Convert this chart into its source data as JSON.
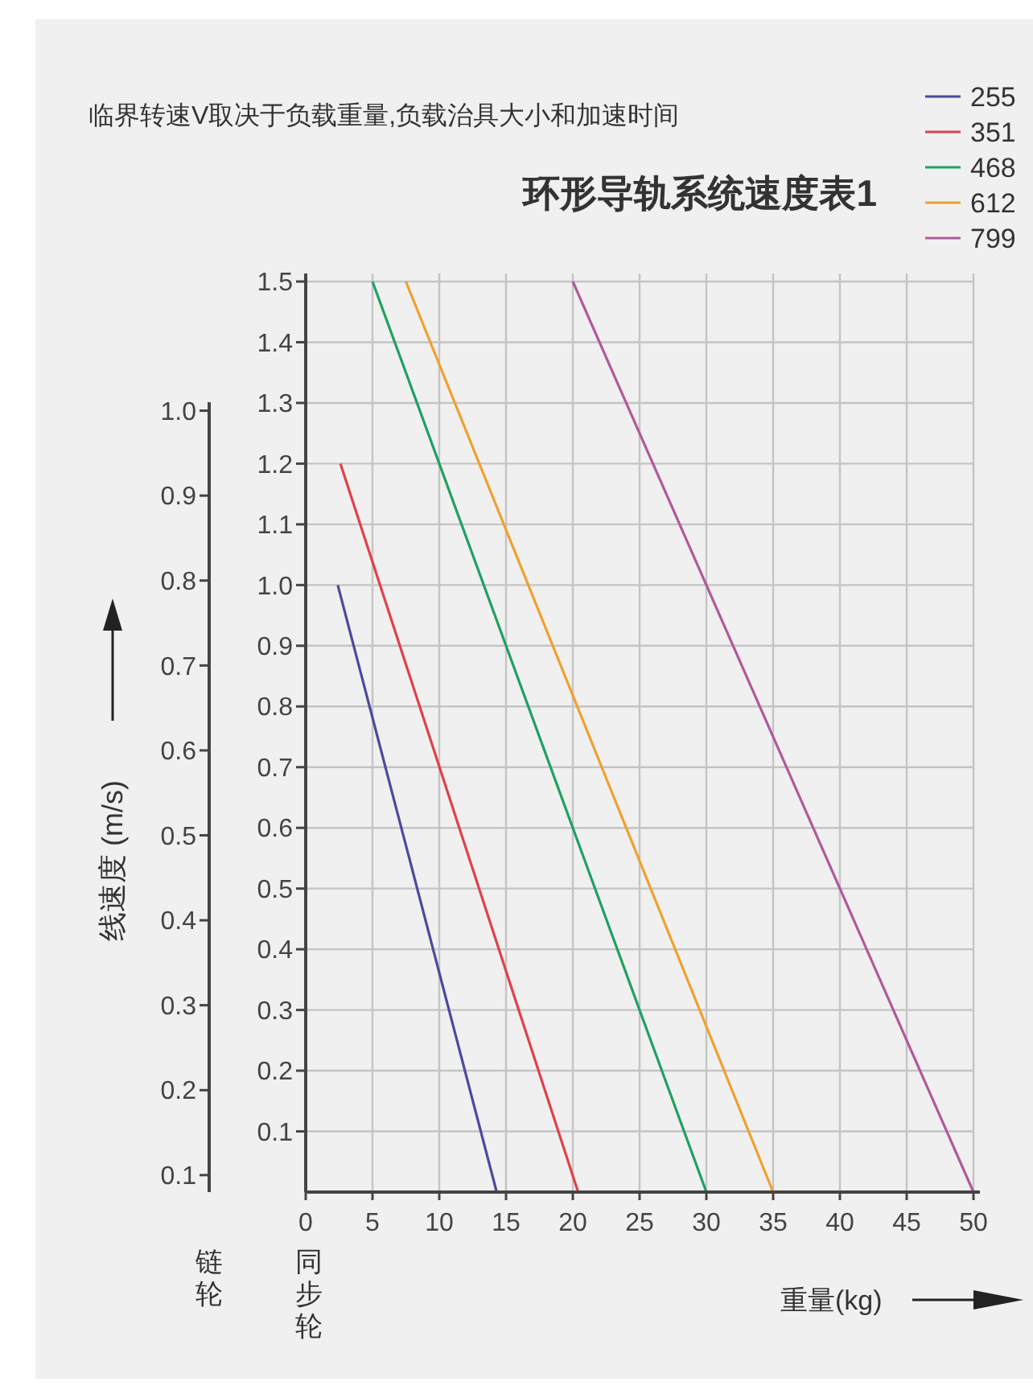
{
  "chart_data": {
    "type": "line",
    "title": "环形导轨系统速度表1",
    "subtitle": "临界转速V取决于负载重量,负载治具大小和加速时间",
    "xlabel": "重量(kg)",
    "ylabel": "线速度 (m/s)",
    "annotations": [
      "链轮",
      "同步轮"
    ],
    "xlim": [
      0,
      50
    ],
    "xticks": [
      0,
      5,
      10,
      15,
      20,
      25,
      30,
      35,
      40,
      45,
      50
    ],
    "ylim": [
      0.08,
      1.01
    ],
    "yticks": [
      0.1,
      0.2,
      0.3,
      0.4,
      0.5,
      0.6,
      0.7,
      0.8,
      0.9,
      {
        "value": 1,
        "label": "1.0"
      }
    ],
    "y2lim": [
      0,
      1.5
    ],
    "y2ticks": [
      0.1,
      0.2,
      0.3,
      0.4,
      0.5,
      0.6,
      0.7,
      0.8,
      0.9,
      {
        "value": 1,
        "label": "1.0"
      },
      1.1,
      1.2,
      1.3,
      1.4,
      1.5
    ],
    "grid": true,
    "legend": "top right",
    "line_style": "solid",
    "series": [
      {
        "name": "255",
        "color": "#4a4a9e",
        "axis": "y2",
        "x": [
          2.4,
          14.3
        ],
        "values": [
          1.0,
          0
        ]
      },
      {
        "name": "351",
        "color": "#e0404a",
        "axis": "y2",
        "x": [
          2.6,
          20.4
        ],
        "values": [
          1.2,
          0
        ]
      },
      {
        "name": "468",
        "color": "#20a060",
        "axis": "y2",
        "x": [
          5,
          30
        ],
        "values": [
          1.5,
          0
        ]
      },
      {
        "name": "612",
        "color": "#f0a030",
        "axis": "y2",
        "x": [
          7.5,
          35
        ],
        "values": [
          1.5,
          0
        ]
      },
      {
        "name": "799",
        "color": "#b05a9a",
        "axis": "y2",
        "x": [
          20,
          50
        ],
        "values": [
          1.5,
          0
        ]
      }
    ]
  }
}
